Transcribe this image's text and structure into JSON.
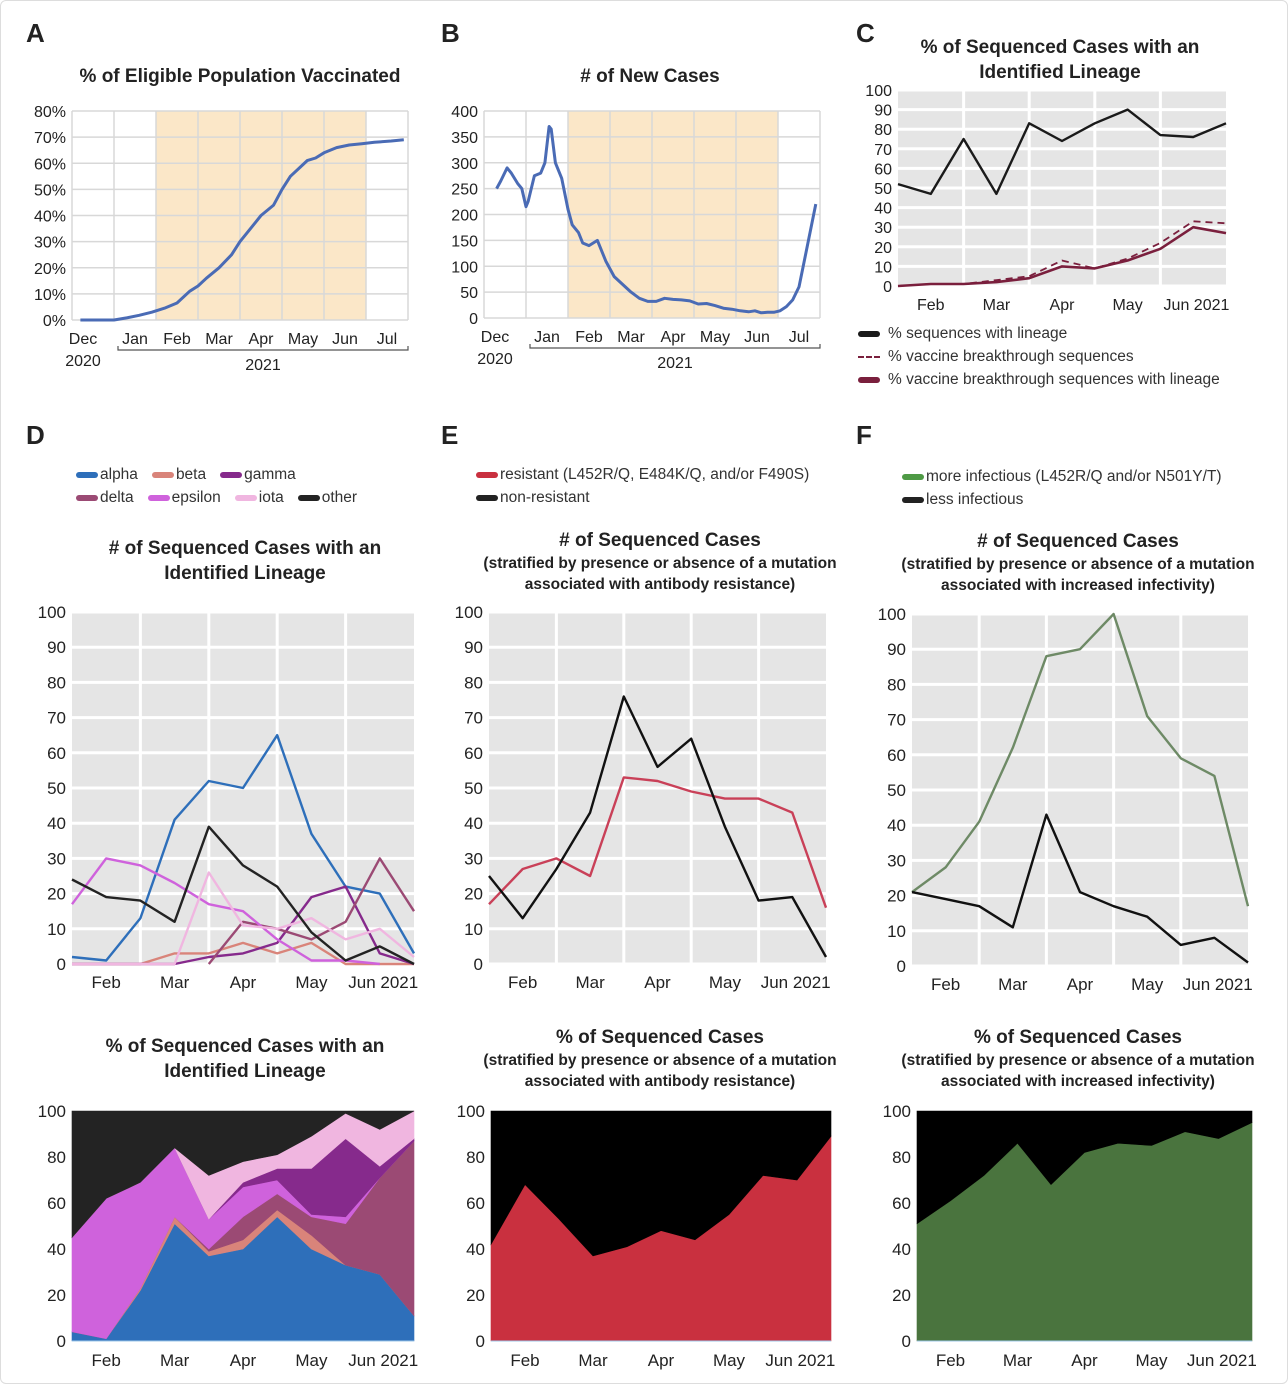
{
  "panels": {
    "A": "A",
    "B": "B",
    "C": "C",
    "D": "D",
    "E": "E",
    "F": "F"
  },
  "colors": {
    "vaccine_line": "#4a6bb5",
    "shade": "#fbe7c8",
    "alpha": "#2e6fba",
    "beta": "#d9847a",
    "gamma": "#862a8c",
    "delta": "#9b4a74",
    "epsilon": "#cf62dc",
    "iota": "#f0b6e0",
    "other": "#232323",
    "resistant": "#c9303f",
    "non_resistant": "#000000",
    "more_infectious": "#4a743e",
    "more_infectious_line": "#6e8a66",
    "less_infectious": "#000000",
    "lineage_black": "#1a1a1a",
    "breakthrough": "#7a1f3d"
  },
  "legends": {
    "C": [
      {
        "label": "% sequences with lineage",
        "style": "solid",
        "color": "#1a1a1a"
      },
      {
        "label": "% vaccine breakthrough sequences",
        "style": "dashed",
        "color": "#7a1f3d"
      },
      {
        "label": "% vaccine breakthrough sequences with lineage",
        "style": "solid",
        "color": "#7a1f3d"
      }
    ],
    "D": [
      {
        "label": "alpha",
        "color": "#2e6fba"
      },
      {
        "label": "beta",
        "color": "#d9847a"
      },
      {
        "label": "gamma",
        "color": "#862a8c"
      },
      {
        "label": "delta",
        "color": "#9b4a74"
      },
      {
        "label": "epsilon",
        "color": "#cf62dc"
      },
      {
        "label": "iota",
        "color": "#f0b6e0"
      },
      {
        "label": "other",
        "color": "#232323"
      }
    ],
    "E": [
      {
        "label": "resistant (L452R/Q, E484K/Q, and/or F490S)",
        "color": "#c9303f"
      },
      {
        "label": "non-resistant",
        "color": "#222222"
      }
    ],
    "F": [
      {
        "label": "more infectious (L452R/Q and/or N501Y/T)",
        "color": "#4e9a45"
      },
      {
        "label": "less infectious",
        "color": "#222222"
      }
    ]
  },
  "chart_data": [
    {
      "id": "A",
      "type": "line",
      "title": "% of Eligible Population Vaccinated",
      "xlabel": "",
      "ylabel": "",
      "ylim": [
        0,
        80
      ],
      "yticks": [
        "0%",
        "10%",
        "20%",
        "30%",
        "40%",
        "50%",
        "60%",
        "70%",
        "80%"
      ],
      "xticks": [
        "Dec",
        "Jan",
        "Feb",
        "Mar",
        "Apr",
        "May",
        "Jun",
        "Jul"
      ],
      "xtick_sub": {
        "Dec": "2020",
        "group": "2021"
      },
      "shaded_months": [
        "Feb",
        "Mar",
        "Apr",
        "May",
        "Jun"
      ],
      "grid": true,
      "x": [
        0.2,
        0.6,
        1.0,
        1.3,
        1.6,
        1.9,
        2.2,
        2.5,
        2.8,
        3.0,
        3.2,
        3.5,
        3.8,
        4.0,
        4.2,
        4.5,
        4.8,
        5.0,
        5.2,
        5.4,
        5.6,
        5.8,
        6.0,
        6.3,
        6.6,
        6.9,
        7.2,
        7.6,
        7.9
      ],
      "values": [
        0,
        0,
        0,
        0.8,
        1.8,
        3,
        4.5,
        6.5,
        11,
        13,
        16,
        20,
        25,
        30,
        34,
        40,
        44,
        50,
        55,
        58,
        61,
        62,
        64,
        66,
        67,
        67.5,
        68,
        68.5,
        69
      ]
    },
    {
      "id": "B",
      "type": "line",
      "title": "# of New Cases",
      "ylim": [
        0,
        400
      ],
      "yticks": [
        "0",
        "50",
        "100",
        "150",
        "200",
        "250",
        "300",
        "350",
        "400"
      ],
      "xticks": [
        "Dec",
        "Jan",
        "Feb",
        "Mar",
        "Apr",
        "May",
        "Jun",
        "Jul"
      ],
      "xtick_sub": {
        "Dec": "2020",
        "group": "2021"
      },
      "shaded_months": [
        "Feb",
        "Mar",
        "Apr",
        "May",
        "Jun"
      ],
      "grid": true,
      "x": [
        0.3,
        0.4,
        0.55,
        0.65,
        0.8,
        0.9,
        1.0,
        1.05,
        1.2,
        1.35,
        1.45,
        1.55,
        1.6,
        1.7,
        1.85,
        2.0,
        2.1,
        2.25,
        2.35,
        2.5,
        2.7,
        2.9,
        3.1,
        3.3,
        3.5,
        3.7,
        3.9,
        4.1,
        4.3,
        4.5,
        4.7,
        4.9,
        5.1,
        5.3,
        5.5,
        5.7,
        5.9,
        6.1,
        6.3,
        6.45,
        6.6,
        6.75,
        6.9,
        7.05,
        7.2,
        7.35,
        7.5,
        7.6,
        7.7,
        7.8,
        7.9
      ],
      "values": [
        250,
        265,
        290,
        280,
        260,
        250,
        215,
        225,
        275,
        280,
        300,
        370,
        365,
        300,
        270,
        210,
        180,
        165,
        145,
        140,
        150,
        110,
        80,
        65,
        50,
        38,
        32,
        32,
        38,
        36,
        35,
        33,
        27,
        28,
        24,
        19,
        17,
        14,
        12,
        14,
        10,
        11,
        11,
        14,
        22,
        35,
        60,
        100,
        140,
        180,
        220
      ]
    },
    {
      "id": "C",
      "type": "line",
      "title": "% of Sequenced Cases with an Identified Lineage",
      "ylim": [
        0,
        100
      ],
      "yticks": [
        "0",
        "10",
        "20",
        "30",
        "40",
        "50",
        "60",
        "70",
        "80",
        "90",
        "100"
      ],
      "xticks": [
        "Feb",
        "Mar",
        "Apr",
        "May",
        "Jun 2021"
      ],
      "grid": true,
      "series": [
        {
          "name": "% sequences with lineage",
          "style": "solid",
          "values": [
            52,
            47,
            75,
            47,
            83,
            74,
            83,
            90,
            77,
            76,
            83
          ]
        },
        {
          "name": "% vaccine breakthrough sequences",
          "style": "dashed",
          "values": [
            0,
            1,
            1,
            3,
            5,
            13,
            9,
            14,
            22,
            33,
            32
          ]
        },
        {
          "name": "% vaccine breakthrough sequences with lineage",
          "style": "solid",
          "values": [
            0,
            1,
            1,
            2,
            4,
            10,
            9,
            13,
            19,
            30,
            27
          ]
        }
      ]
    },
    {
      "id": "D-line",
      "type": "line",
      "title": "# of Sequenced Cases with an Identified Lineage",
      "ylim": [
        0,
        100
      ],
      "yticks": [
        "0",
        "10",
        "20",
        "30",
        "40",
        "50",
        "60",
        "70",
        "80",
        "90",
        "100"
      ],
      "xticks": [
        "Feb",
        "Mar",
        "Apr",
        "May",
        "Jun 2021"
      ],
      "grid": true,
      "series": [
        {
          "name": "alpha",
          "values": [
            2,
            1,
            13,
            41,
            52,
            50,
            65,
            37,
            22,
            20,
            3
          ]
        },
        {
          "name": "beta",
          "values": [
            0,
            0,
            0,
            3,
            3,
            6,
            3,
            6,
            0,
            0,
            0
          ]
        },
        {
          "name": "gamma",
          "values": [
            0,
            0,
            0,
            0,
            2,
            3,
            6,
            19,
            22,
            3,
            0
          ]
        },
        {
          "name": "delta",
          "values": [
            null,
            null,
            null,
            null,
            0,
            12,
            10,
            7,
            12,
            30,
            15
          ]
        },
        {
          "name": "epsilon",
          "values": [
            17,
            30,
            28,
            23,
            17,
            15,
            7,
            1,
            1,
            0,
            null
          ]
        },
        {
          "name": "iota",
          "values": [
            0,
            0,
            0,
            0,
            26,
            11,
            10,
            13,
            7,
            10,
            2
          ]
        },
        {
          "name": "other",
          "values": [
            24,
            19,
            18,
            12,
            39,
            28,
            22,
            9,
            1,
            5,
            0
          ]
        }
      ]
    },
    {
      "id": "D-area",
      "type": "area",
      "stacked": true,
      "title": "% of Sequenced Cases with an Identified Lineage",
      "ylim": [
        0,
        100
      ],
      "yticks": [
        "0",
        "20",
        "40",
        "60",
        "80",
        "100"
      ],
      "xticks": [
        "Feb",
        "Mar",
        "Apr",
        "May",
        "Jun 2021"
      ],
      "grid": false,
      "series": [
        {
          "name": "alpha",
          "values": [
            4,
            1,
            22,
            51,
            37,
            40,
            54,
            40,
            33,
            29,
            11
          ]
        },
        {
          "name": "beta",
          "values": [
            0,
            0,
            1,
            3,
            2,
            4,
            3,
            6,
            0,
            0,
            0
          ]
        },
        {
          "name": "delta",
          "values": [
            0,
            0,
            0,
            0,
            1,
            10,
            7,
            8,
            18,
            42,
            76
          ]
        },
        {
          "name": "epsilon",
          "values": [
            41,
            61,
            46,
            30,
            13,
            13,
            6,
            1,
            3,
            0,
            0
          ]
        },
        {
          "name": "gamma",
          "values": [
            0,
            0,
            0,
            0,
            0,
            2,
            5,
            20,
            34,
            5,
            1
          ]
        },
        {
          "name": "iota",
          "values": [
            0,
            0,
            0,
            0,
            19,
            9,
            6,
            14,
            11,
            16,
            12
          ]
        },
        {
          "name": "other",
          "values": [
            55,
            38,
            31,
            16,
            28,
            22,
            19,
            11,
            1,
            8,
            0
          ]
        }
      ]
    },
    {
      "id": "E-line",
      "type": "line",
      "title": "# of Sequenced Cases",
      "subtitle": "(stratified by presence or absence of a mutation associated with antibody resistance)",
      "ylim": [
        0,
        100
      ],
      "yticks": [
        "0",
        "10",
        "20",
        "30",
        "40",
        "50",
        "60",
        "70",
        "80",
        "90",
        "100"
      ],
      "xticks": [
        "Feb",
        "Mar",
        "Apr",
        "May",
        "Jun 2021"
      ],
      "grid": true,
      "series": [
        {
          "name": "resistant",
          "values": [
            17,
            27,
            30,
            25,
            53,
            52,
            49,
            47,
            47,
            43,
            16
          ]
        },
        {
          "name": "non-resistant",
          "values": [
            25,
            13,
            27,
            43,
            76,
            56,
            64,
            39,
            18,
            19,
            2
          ]
        }
      ]
    },
    {
      "id": "E-area",
      "type": "area",
      "stacked": true,
      "title": "% of Sequenced Cases",
      "subtitle": "(stratified by presence or absence of a mutation associated with antibody resistance)",
      "ylim": [
        0,
        100
      ],
      "yticks": [
        "0",
        "20",
        "40",
        "60",
        "80",
        "100"
      ],
      "xticks": [
        "Feb",
        "Mar",
        "Apr",
        "May",
        "Jun 2021"
      ],
      "grid": false,
      "series": [
        {
          "name": "resistant",
          "values": [
            42,
            68,
            53,
            37,
            41,
            48,
            44,
            55,
            72,
            70,
            89
          ]
        },
        {
          "name": "non-resistant",
          "values": [
            58,
            32,
            47,
            63,
            59,
            52,
            56,
            45,
            28,
            30,
            11
          ]
        }
      ]
    },
    {
      "id": "F-line",
      "type": "line",
      "title": "# of Sequenced Cases",
      "subtitle": "(stratified by presence or absence of a mutation associated with increased infectivity)",
      "ylim": [
        0,
        100
      ],
      "yticks": [
        "0",
        "10",
        "20",
        "30",
        "40",
        "50",
        "60",
        "70",
        "80",
        "90",
        "100"
      ],
      "xticks": [
        "Feb",
        "Mar",
        "Apr",
        "May",
        "Jun 2021"
      ],
      "grid": true,
      "series": [
        {
          "name": "more infectious",
          "values": [
            21,
            28,
            41,
            62,
            88,
            90,
            100,
            71,
            59,
            54,
            17
          ]
        },
        {
          "name": "less infectious",
          "values": [
            21,
            19,
            17,
            11,
            43,
            21,
            17,
            14,
            6,
            8,
            1
          ]
        }
      ]
    },
    {
      "id": "F-area",
      "type": "area",
      "stacked": true,
      "title": "% of Sequenced Cases",
      "subtitle": "(stratified by presence or absence of a mutation associated with increased infectivity)",
      "ylim": [
        0,
        100
      ],
      "yticks": [
        "0",
        "20",
        "40",
        "60",
        "80",
        "100"
      ],
      "xticks": [
        "Feb",
        "Mar",
        "Apr",
        "May",
        "Jun 2021"
      ],
      "grid": false,
      "series": [
        {
          "name": "more infectious",
          "values": [
            51,
            61,
            72,
            86,
            68,
            82,
            86,
            85,
            91,
            88,
            95
          ]
        },
        {
          "name": "less infectious",
          "values": [
            49,
            39,
            28,
            14,
            32,
            18,
            14,
            15,
            9,
            12,
            5
          ]
        }
      ]
    }
  ]
}
